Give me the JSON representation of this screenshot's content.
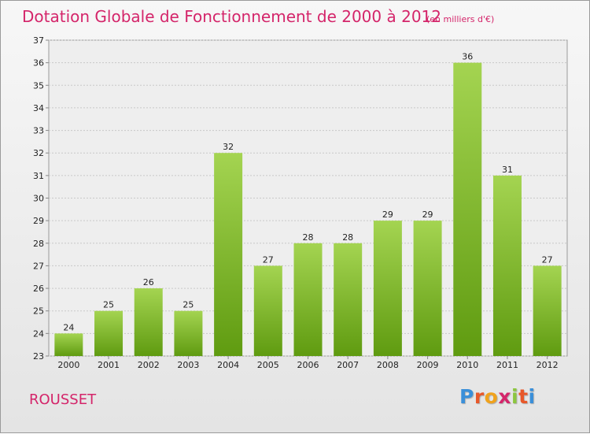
{
  "header": {
    "title": "Dotation Globale de Fonctionnement de 2000 à 2012",
    "unit": "(en milliers d'€)"
  },
  "footer": {
    "commune": "ROUSSET",
    "logo": "Proxiti"
  },
  "colors": {
    "accent": "#d4256a",
    "bar_light": "#a2d24e",
    "bar_dark": "#5f9c11"
  },
  "chart_data": {
    "type": "bar",
    "categories": [
      "2000",
      "2001",
      "2002",
      "2003",
      "2004",
      "2005",
      "2006",
      "2007",
      "2008",
      "2009",
      "2010",
      "2011",
      "2012"
    ],
    "values": [
      24,
      25,
      26,
      25,
      32,
      27,
      28,
      28,
      29,
      29,
      36,
      31,
      27
    ],
    "title": "Dotation Globale de Fonctionnement de 2000 à 2012",
    "subtitle": "(en milliers d'€)",
    "xlabel": "",
    "ylabel": "",
    "ylim": [
      23,
      37
    ],
    "yticks": [
      23,
      24,
      25,
      26,
      27,
      28,
      29,
      30,
      31,
      32,
      33,
      34,
      35,
      36,
      37
    ],
    "grid": true,
    "legend": "none"
  }
}
